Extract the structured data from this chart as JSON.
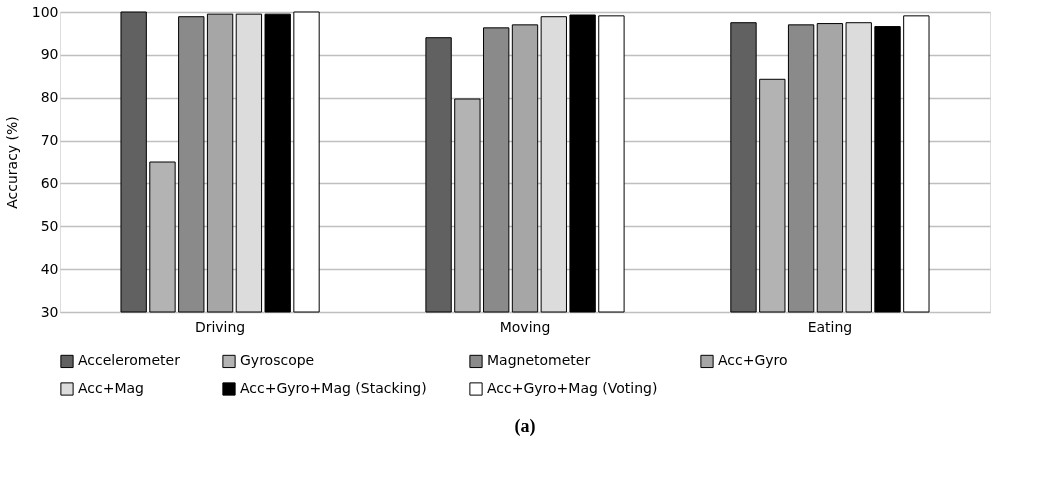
{
  "chart_data": {
    "type": "bar",
    "ylabel": "Accuracy (%)",
    "categories": [
      "Driving",
      "Moving",
      "Eating"
    ],
    "series": [
      {
        "name": "Accelerometer",
        "color": "#616161",
        "values": [
          100,
          94.0,
          97.5
        ]
      },
      {
        "name": "Gyroscope",
        "color": "#b3b3b3",
        "values": [
          65,
          79.7,
          84.3
        ]
      },
      {
        "name": "Magnetometer",
        "color": "#8a8a8a",
        "values": [
          98.9,
          96.3,
          97.0
        ]
      },
      {
        "name": "Acc+Gyro",
        "color": "#a6a6a6",
        "values": [
          99.5,
          97.0,
          97.3
        ]
      },
      {
        "name": "Acc+Mag",
        "color": "#dcdcdc",
        "values": [
          99.5,
          98.9,
          97.5
        ]
      },
      {
        "name": "Acc+Gyro+Mag (Stacking)",
        "color": "#000000",
        "values": [
          99.5,
          99.3,
          96.6
        ]
      },
      {
        "name": "Acc+Gyro+Mag (Voting)",
        "color": "#ffffff",
        "values": [
          100,
          99.1,
          99.1
        ]
      }
    ],
    "ylim": [
      30,
      100
    ],
    "yticks": [
      30,
      40,
      50,
      60,
      70,
      80,
      90,
      100
    ],
    "grid": "y",
    "legend": "bottom",
    "annotations": [
      "(a)"
    ]
  }
}
